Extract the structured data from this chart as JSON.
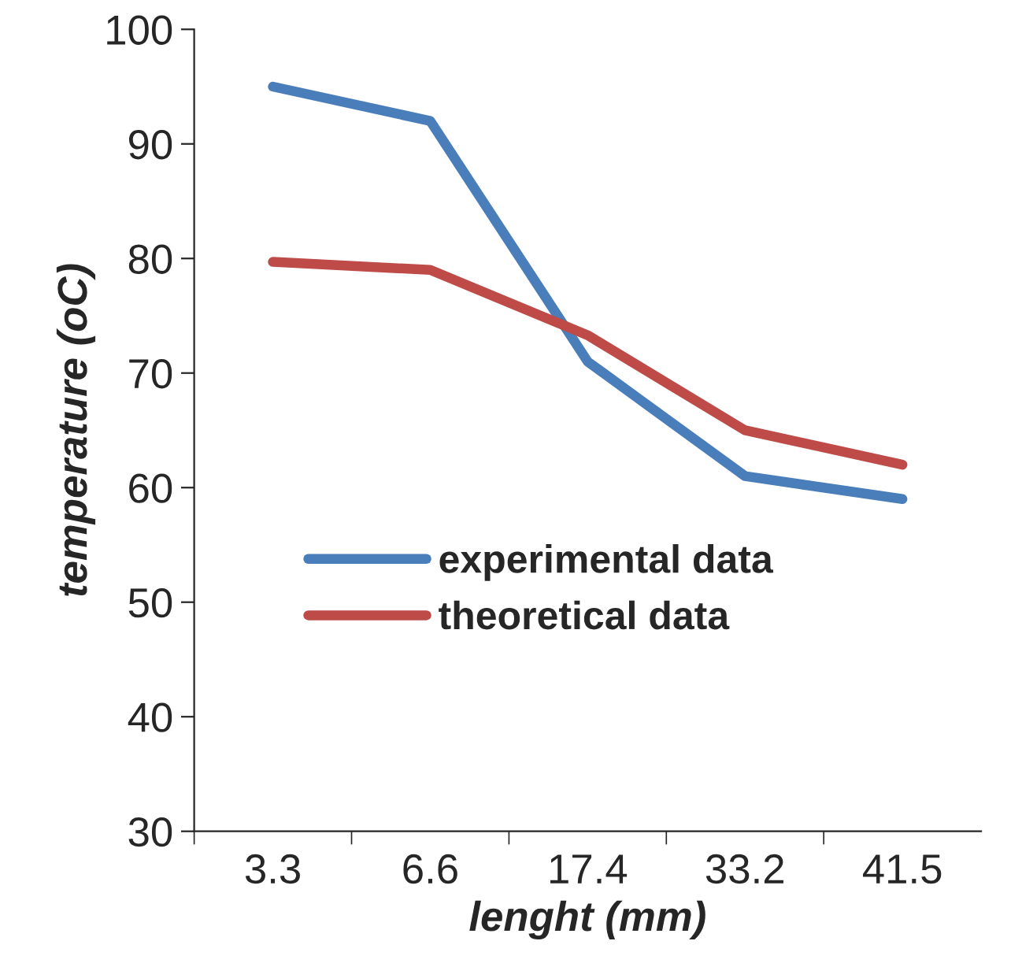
{
  "chart_data": {
    "type": "line",
    "xlabel": "lenght (mm)",
    "ylabel": "temperature (oC)",
    "categories": [
      "3.3",
      "6.6",
      "17.4",
      "33.2",
      "41.5"
    ],
    "series": [
      {
        "name": "experimental data",
        "color": "#4a7ebb",
        "values": [
          95,
          92,
          71,
          61,
          59
        ]
      },
      {
        "name": "theoretical data",
        "color": "#be4b48",
        "values": [
          79.7,
          79,
          73.3,
          65,
          62
        ]
      }
    ],
    "ylim": [
      30,
      100
    ],
    "yticks": [
      30,
      40,
      50,
      60,
      70,
      80,
      90,
      100
    ],
    "grid": false,
    "legend": "center left",
    "marker": "none",
    "line_style": "solid"
  }
}
